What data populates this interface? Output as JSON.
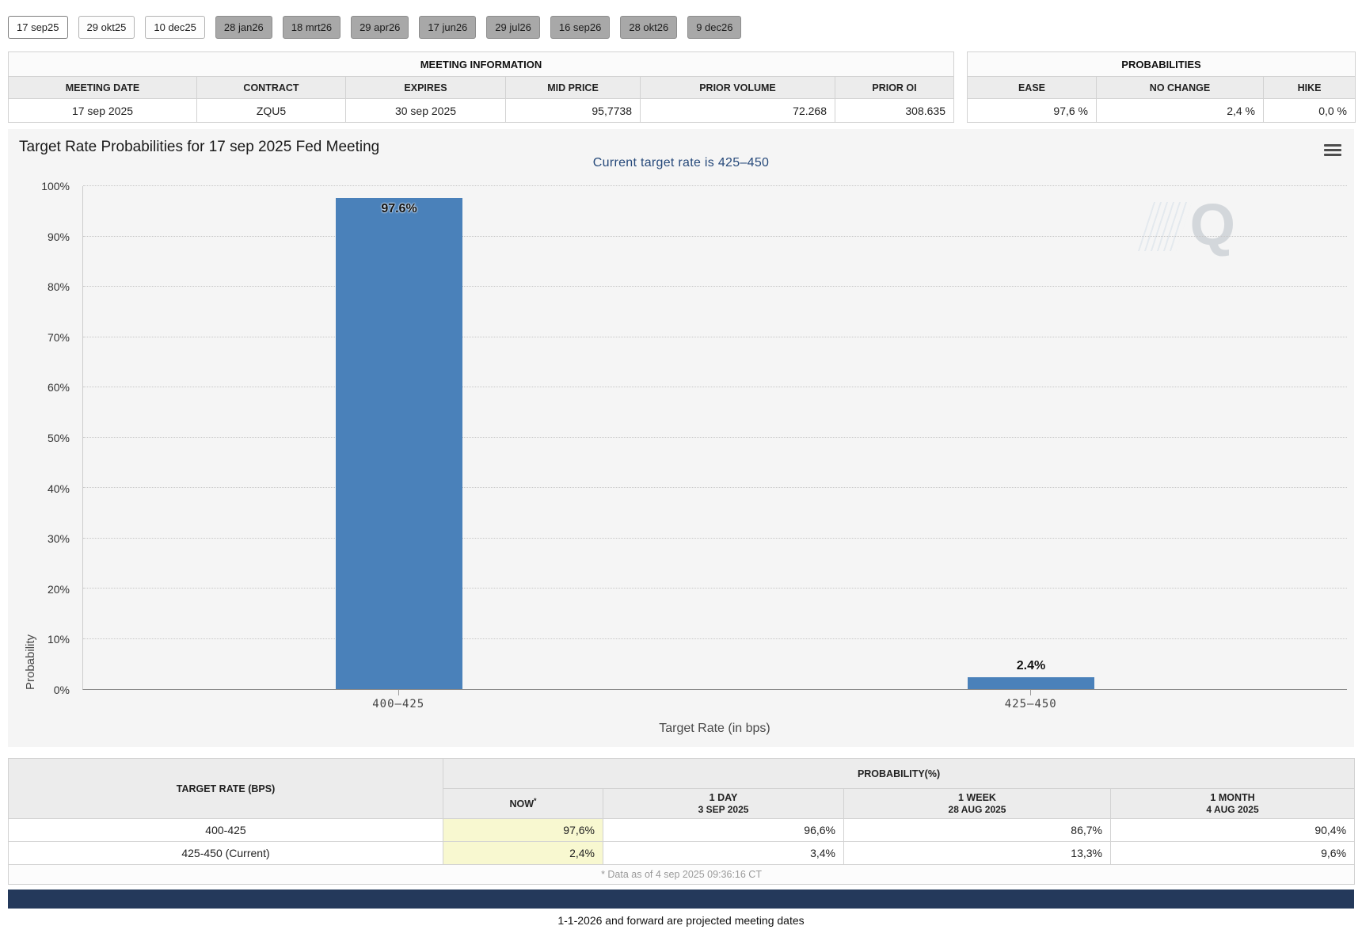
{
  "tabs": {
    "items": [
      {
        "label": "17 sep25",
        "projected": false,
        "active": true
      },
      {
        "label": "29 okt25",
        "projected": false,
        "active": false
      },
      {
        "label": "10 dec25",
        "projected": false,
        "active": false
      },
      {
        "label": "28 jan26",
        "projected": true,
        "active": false
      },
      {
        "label": "18 mrt26",
        "projected": true,
        "active": false
      },
      {
        "label": "29 apr26",
        "projected": true,
        "active": false
      },
      {
        "label": "17 jun26",
        "projected": true,
        "active": false
      },
      {
        "label": "29 jul26",
        "projected": true,
        "active": false
      },
      {
        "label": "16 sep26",
        "projected": true,
        "active": false
      },
      {
        "label": "28 okt26",
        "projected": true,
        "active": false
      },
      {
        "label": "9 dec26",
        "projected": true,
        "active": false
      }
    ]
  },
  "meeting_info": {
    "title": "MEETING INFORMATION",
    "headers": [
      "MEETING DATE",
      "CONTRACT",
      "EXPIRES",
      "MID PRICE",
      "PRIOR VOLUME",
      "PRIOR OI"
    ],
    "row": {
      "meeting_date": "17 sep 2025",
      "contract": "ZQU5",
      "expires": "30 sep 2025",
      "mid_price": "95,7738",
      "prior_volume": "72.268",
      "prior_oi": "308.635"
    }
  },
  "probabilities": {
    "title": "PROBABILITIES",
    "headers": [
      "EASE",
      "NO CHANGE",
      "HIKE"
    ],
    "row": {
      "ease": "97,6 %",
      "no_change": "2,4 %",
      "hike": "0,0 %"
    }
  },
  "chart_data": {
    "type": "bar",
    "title": "Target Rate Probabilities for 17 sep 2025 Fed Meeting",
    "subtitle": "Current target rate is 425–450",
    "categories": [
      "400–425",
      "425–450"
    ],
    "values": [
      97.6,
      2.4
    ],
    "labels": [
      "97.6%",
      "2.4%"
    ],
    "xlabel": "Target Rate (in bps)",
    "ylabel": "Probability",
    "ylim": [
      0,
      100
    ],
    "y_ticks": [
      "0%",
      "10%",
      "20%",
      "30%",
      "40%",
      "50%",
      "60%",
      "70%",
      "80%",
      "90%",
      "100%"
    ],
    "grid": true,
    "bar_color": "#4a81ba",
    "watermark": "Q",
    "legend": "none"
  },
  "history_table": {
    "col1_header": "TARGET RATE (BPS)",
    "group_header": "PROBABILITY(%)",
    "sub_headers": [
      {
        "line1": "NOW",
        "asterisk": "*",
        "line2": ""
      },
      {
        "line1": "1 DAY",
        "line2": "3 SEP 2025"
      },
      {
        "line1": "1 WEEK",
        "line2": "28 AUG 2025"
      },
      {
        "line1": "1 MONTH",
        "line2": "4 AUG 2025"
      }
    ],
    "rows": [
      {
        "target_rate": "400-425",
        "now": "97,6%",
        "day": "96,6%",
        "week": "86,7%",
        "month": "90,4%"
      },
      {
        "target_rate": "425-450 (Current)",
        "now": "2,4%",
        "day": "3,4%",
        "week": "13,3%",
        "month": "9,6%"
      }
    ],
    "footnote": "* Data as of 4 sep 2025 09:36:16 CT"
  },
  "footer": {
    "note": "1-1-2026 and forward are projected meeting dates"
  },
  "colors": {
    "bar": "#4a81ba",
    "now_highlight": "#f8f8d0",
    "bottom_bar": "#24395b",
    "subtitle_text": "#26497a"
  }
}
